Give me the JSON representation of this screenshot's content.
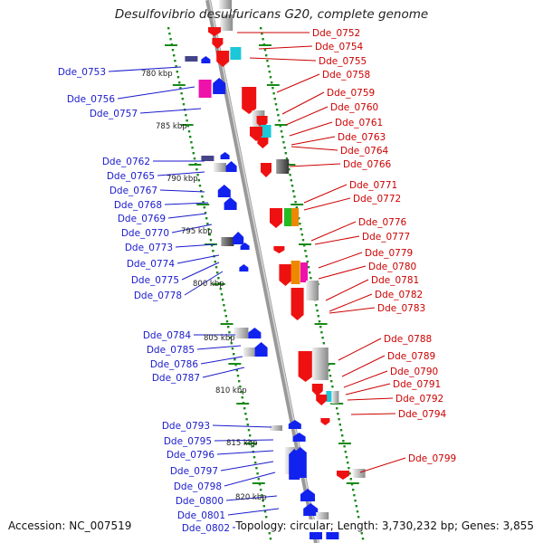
{
  "map": {
    "title": "Desulfovibrio desulfuricans G20, complete genome",
    "accession": "Accession: NC_007519",
    "topology": "Topology: circular; Length: 3,730,232 bp; Genes: 3,855",
    "colors": {
      "forward": "#ee1111",
      "reverse": "#1122ee",
      "label_forward": "#cc0000",
      "label_reverse": "#1a1acc",
      "backbone": "#888888",
      "scale_dots": "#1a8a1a"
    },
    "scale_labels": [
      "780 kbp",
      "785 kbp",
      "790 kbp",
      "795 kbp",
      "800 kbp",
      "805 kbp",
      "810 kbp",
      "815 kbp",
      "820 kbp"
    ],
    "left_genes": [
      "Dde_0753",
      "Dde_0756",
      "Dde_0757",
      "Dde_0762",
      "Dde_0765",
      "Dde_0767",
      "Dde_0768",
      "Dde_0769",
      "Dde_0770",
      "Dde_0773",
      "Dde_0774",
      "Dde_0775",
      "Dde_0778",
      "Dde_0784",
      "Dde_0785",
      "Dde_0786",
      "Dde_0787",
      "Dde_0793",
      "Dde_0795",
      "Dde_0796",
      "Dde_0797",
      "Dde_0798",
      "Dde_0800",
      "Dde_0801",
      "Dde_0802"
    ],
    "right_genes": [
      "Dde_0752",
      "Dde_0754",
      "Dde_0755",
      "Dde_0758",
      "Dde_0759",
      "Dde_0760",
      "Dde_0761",
      "Dde_0763",
      "Dde_0764",
      "Dde_0766",
      "Dde_0771",
      "Dde_0772",
      "Dde_0776",
      "Dde_0777",
      "Dde_0779",
      "Dde_0780",
      "Dde_0781",
      "Dde_0782",
      "Dde_0783",
      "Dde_0788",
      "Dde_0789",
      "Dde_0790",
      "Dde_0791",
      "Dde_0792",
      "Dde_0794",
      "Dde_0799"
    ]
  }
}
